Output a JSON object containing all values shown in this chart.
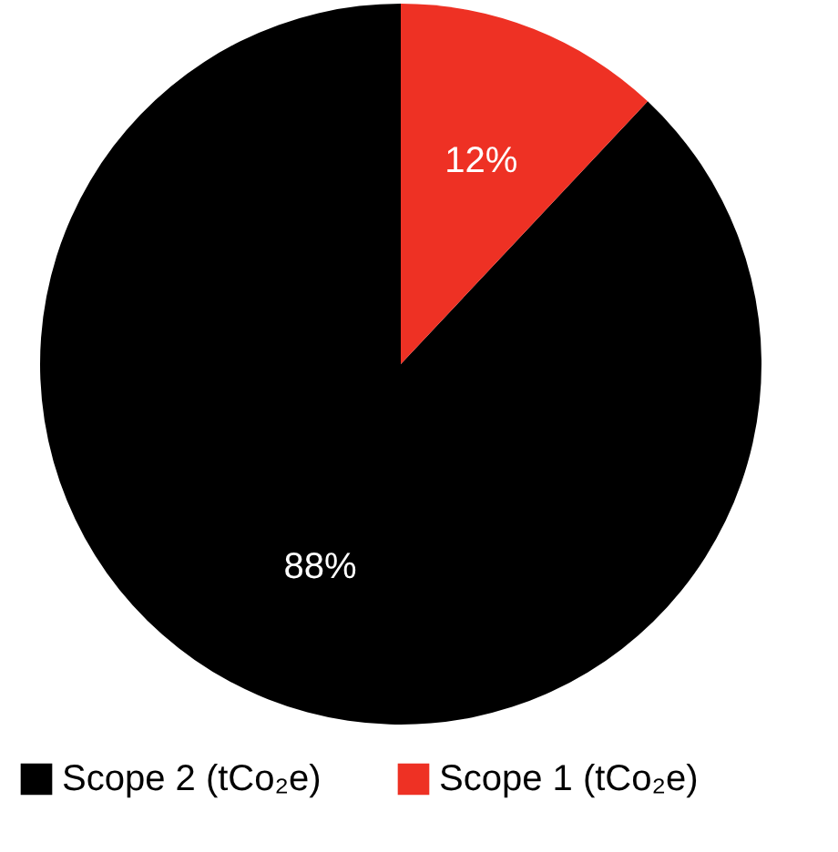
{
  "chart_data": {
    "type": "pie",
    "categories": [
      "Scope 2 (tCo₂e)",
      "Scope 1 (tCo₂e)"
    ],
    "values": [
      88,
      12
    ],
    "colors": [
      "#000000",
      "#ee3124"
    ],
    "value_labels": [
      "88%",
      "12%"
    ],
    "legend": "bottom"
  }
}
